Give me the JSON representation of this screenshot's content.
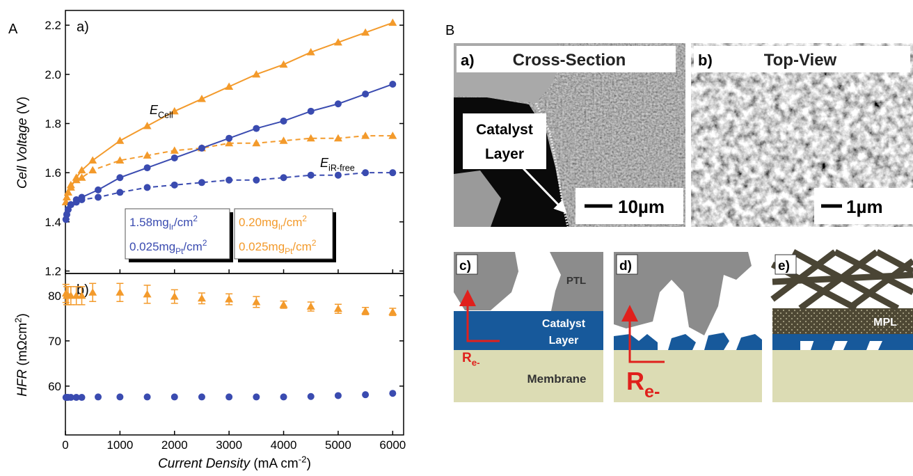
{
  "panel_a_label": "A",
  "panel_b_label": "B",
  "chart_data": [
    {
      "type": "line",
      "panel_label": "a)",
      "ylabel": [
        {
          "text": "Cell Voltage",
          "style": "italic"
        },
        {
          "text": " (V)"
        }
      ],
      "xlim": [
        0,
        6200
      ],
      "ylim": [
        1.19,
        2.26
      ],
      "xticks": [
        0,
        1000,
        2000,
        3000,
        4000,
        5000,
        6000
      ],
      "yticks": [
        1.2,
        1.4,
        1.6,
        1.8,
        {
          "value": 2,
          "label": "2.0"
        },
        2.2
      ],
      "series": [
        {
          "color": "#f39a2b",
          "marker": "triangle",
          "linestyle": "solid",
          "x": [
            10,
            25,
            50,
            100,
            200,
            300,
            500,
            1000,
            1500,
            2000,
            2500,
            3000,
            3500,
            4000,
            4500,
            5000,
            5500,
            6000
          ],
          "values": [
            1.48,
            1.5,
            1.52,
            1.54,
            1.58,
            1.61,
            1.65,
            1.73,
            1.79,
            1.85,
            1.9,
            1.95,
            2.0,
            2.04,
            2.09,
            2.13,
            2.17,
            2.21
          ]
        },
        {
          "color": "#f39a2b",
          "marker": "triangle",
          "linestyle": "dashed",
          "x": [
            10,
            25,
            50,
            100,
            200,
            300,
            500,
            1000,
            1500,
            2000,
            2500,
            3000,
            3500,
            4000,
            4500,
            5000,
            5500,
            6000
          ],
          "values": [
            1.48,
            1.5,
            1.52,
            1.55,
            1.57,
            1.58,
            1.61,
            1.65,
            1.67,
            1.69,
            1.7,
            1.72,
            1.72,
            1.73,
            1.74,
            1.74,
            1.75,
            1.75
          ]
        },
        {
          "color": "#3a4bb0",
          "marker": "circle",
          "linestyle": "solid",
          "x": [
            10,
            25,
            50,
            100,
            200,
            300,
            600,
            1000,
            1500,
            2000,
            2500,
            3000,
            3500,
            4000,
            4500,
            5000,
            5500,
            6000
          ],
          "values": [
            1.41,
            1.43,
            1.45,
            1.47,
            1.49,
            1.5,
            1.53,
            1.58,
            1.62,
            1.66,
            1.7,
            1.74,
            1.78,
            1.81,
            1.85,
            1.88,
            1.92,
            1.96
          ]
        },
        {
          "color": "#3a4bb0",
          "marker": "circle",
          "linestyle": "dashed",
          "x": [
            10,
            25,
            50,
            100,
            200,
            300,
            600,
            1000,
            1500,
            2000,
            2500,
            3000,
            3500,
            4000,
            4500,
            5000,
            5500,
            6000
          ],
          "values": [
            1.41,
            1.43,
            1.45,
            1.47,
            1.48,
            1.49,
            1.5,
            1.52,
            1.54,
            1.55,
            1.56,
            1.57,
            1.57,
            1.58,
            1.59,
            1.59,
            1.6,
            1.6
          ]
        }
      ],
      "annotations": [
        [
          {
            "text": "E",
            "style": "italic"
          },
          {
            "text": "Cell",
            "style": "sub"
          }
        ],
        [
          {
            "text": "E",
            "style": "italic"
          },
          {
            "text": "iR-free",
            "style": "sub"
          }
        ]
      ],
      "legend_boxes": [
        {
          "color": "#3a4bb0",
          "lines": [
            [
              {
                "text": "1.58mg"
              },
              {
                "text": "Ir",
                "style": "sub"
              },
              {
                "text": "/cm"
              },
              {
                "text": "2",
                "style": "sup"
              }
            ],
            [
              {
                "text": "0.025mg"
              },
              {
                "text": "Pt",
                "style": "sub"
              },
              {
                "text": "/cm"
              },
              {
                "text": "2",
                "style": "sup"
              }
            ]
          ]
        },
        {
          "color": "#f39a2b",
          "lines": [
            [
              {
                "text": "0.20mg"
              },
              {
                "text": "Ir",
                "style": "sub"
              },
              {
                "text": "/cm"
              },
              {
                "text": "2",
                "style": "sup"
              }
            ],
            [
              {
                "text": "0.025mg"
              },
              {
                "text": "Pt",
                "style": "sub"
              },
              {
                "text": "/cm"
              },
              {
                "text": "2",
                "style": "sup"
              }
            ]
          ]
        }
      ]
    },
    {
      "type": "scatter",
      "panel_label": "b)",
      "ylabel": [
        {
          "text": "HFR",
          "style": "italic"
        },
        {
          "text": " (mΩcm"
        },
        {
          "text": "2",
          "style": "sup"
        },
        {
          "text": ")"
        }
      ],
      "xlabel": [
        {
          "text": "Current Density",
          "style": "italic"
        },
        {
          "text": " (mA cm"
        },
        {
          "text": "-2",
          "style": "sup"
        },
        {
          "text": ")"
        }
      ],
      "xlim": [
        0,
        6200
      ],
      "ylim": [
        49.2,
        84.9
      ],
      "xticks": [
        0,
        1000,
        2000,
        3000,
        4000,
        5000,
        6000
      ],
      "yticks": [
        60,
        70,
        80
      ],
      "series": [
        {
          "color": "#f39a2b",
          "marker": "triangle",
          "x": [
            10,
            25,
            50,
            100,
            200,
            300,
            500,
            1000,
            1500,
            2000,
            2500,
            3000,
            3500,
            4000,
            4500,
            5000,
            5500,
            6000
          ],
          "values": [
            80.5,
            80,
            80,
            80,
            80,
            80,
            80.7,
            80.7,
            80.3,
            79.8,
            79.4,
            79.2,
            78.6,
            78,
            77.6,
            77.1,
            76.6,
            76.4
          ],
          "errors": [
            2,
            2,
            2,
            2,
            2,
            2,
            2,
            2,
            2,
            1.5,
            1.2,
            1.2,
            1.2,
            0.8,
            1,
            1,
            0.8,
            0.8
          ]
        },
        {
          "color": "#3a4bb0",
          "marker": "circle",
          "x": [
            10,
            25,
            50,
            100,
            200,
            300,
            600,
            1000,
            1500,
            2000,
            2500,
            3000,
            3500,
            4000,
            4500,
            5000,
            5500,
            6000
          ],
          "values": [
            57.5,
            57.5,
            57.5,
            57.5,
            57.5,
            57.5,
            57.6,
            57.6,
            57.6,
            57.6,
            57.6,
            57.6,
            57.6,
            57.6,
            57.7,
            57.9,
            58.1,
            58.4
          ]
        }
      ]
    }
  ],
  "panel_b": {
    "micrographs": [
      {
        "label": "a)",
        "title": "Cross-Section",
        "annotation": [
          "Catalyst",
          "Layer"
        ],
        "scale": "10µm"
      },
      {
        "label": "b)",
        "title": "Top-View",
        "scale": "1µm"
      }
    ],
    "schematics": [
      {
        "label": "c)",
        "ptl": "PTL",
        "catalyst": [
          "Catalyst",
          "Layer"
        ],
        "membrane": "Membrane",
        "resistance": [
          {
            "text": "R"
          },
          {
            "text": "e-",
            "style": "sub"
          }
        ]
      },
      {
        "label": "d)",
        "resistance": [
          {
            "text": "R"
          },
          {
            "text": "e-",
            "style": "sub"
          }
        ]
      },
      {
        "label": "e)",
        "mpl": "MPL"
      }
    ]
  }
}
